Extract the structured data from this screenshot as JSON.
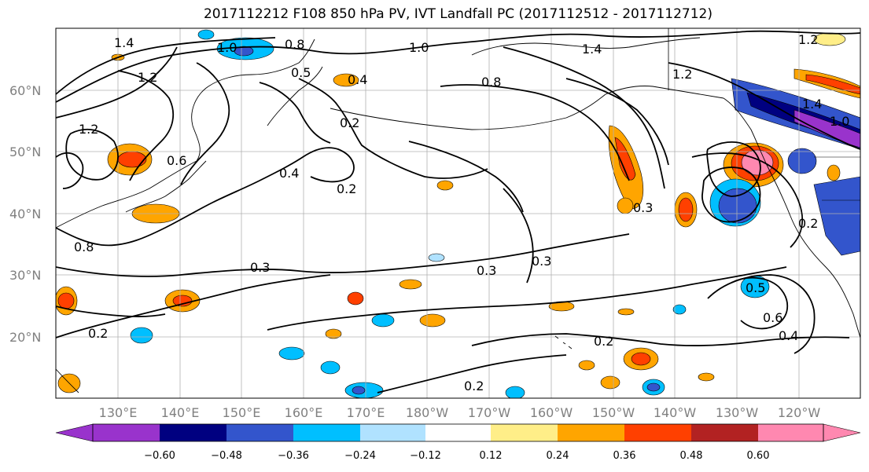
{
  "title": "2017112212 F108 850 hPa PV, IVT Landfall PC (2017112512 - 2017112712)",
  "lat_labels": [
    "60°N",
    "50°N",
    "40°N",
    "30°N",
    "20°N"
  ],
  "lon_labels": [
    "130°E",
    "140°E",
    "150°E",
    "160°E",
    "170°E",
    "180°W",
    "170°W",
    "160°W",
    "150°W",
    "140°W",
    "130°W",
    "120°W"
  ],
  "colorbar": {
    "colors": [
      "#9933cc",
      "#000080",
      "#3355cc",
      "#00bfff",
      "#b0e2ff",
      "#ffffff",
      "#ffee88",
      "#ffa500",
      "#ff4000",
      "#b22222",
      "#ff88b0"
    ],
    "ticks": [
      "−0.60",
      "−0.48",
      "−0.36",
      "−0.24",
      "−0.12",
      "0.12",
      "0.24",
      "0.36",
      "0.48",
      "0.60"
    ]
  },
  "contour_labels": [
    "1.4",
    "1.0",
    "0.8",
    "1.0",
    "1.4",
    "1.2",
    "1.2",
    "0.5",
    "0.4",
    "0.8",
    "0.2",
    "1.2",
    "1.4",
    "1.0",
    "1.2",
    "0.6",
    "0.4",
    "0.2",
    "0.8",
    "0.3",
    "0.3",
    "0.3",
    "0.3",
    "0.2",
    "0.5",
    "0.6",
    "0.4",
    "0.2",
    "0.2",
    "0.2"
  ]
}
